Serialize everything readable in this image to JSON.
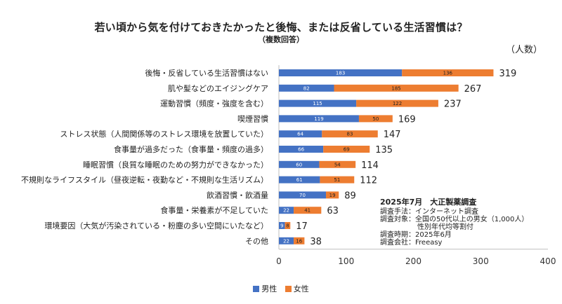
{
  "chart_data": {
    "type": "bar",
    "orientation": "horizontal",
    "stacked": true,
    "title": "若い頃から気を付けておきたかったと後悔、または反省している生活習慣は？",
    "subtitle": "（複数回答）",
    "unit_label": "（人数）",
    "categories": [
      "後悔・反省している生活習慣はない",
      "肌や髪などのエイジングケア",
      "運動習慣（頻度・強度を含む）",
      "喫煙習慣",
      "ストレス状態（人間関係等のストレス環境を放置していた）",
      "食事量が過多だった（食事量・頻度の過多）",
      "睡眠習慣（良質な睡眠のための努力ができなかった）",
      "不規則なライフスタイル（昼夜逆転・夜勤など・不規則な生活リズム）",
      "飲酒習慣・飲酒量",
      "食事量・栄養素が不足していた",
      "環境要因（大気が汚染されている・粉塵の多い空間にいたなど）",
      "その他"
    ],
    "series": [
      {
        "name": "男性",
        "color": "#4472C4",
        "values": [
          183,
          82,
          115,
          119,
          64,
          66,
          60,
          61,
          70,
          22,
          9,
          22
        ]
      },
      {
        "name": "女性",
        "color": "#ED7D31",
        "values": [
          136,
          185,
          122,
          50,
          83,
          69,
          54,
          51,
          19,
          41,
          8,
          16
        ]
      }
    ],
    "totals": [
      319,
      267,
      237,
      169,
      147,
      135,
      114,
      112,
      89,
      63,
      17,
      38
    ],
    "x_ticks": [
      0,
      100,
      200,
      300,
      400
    ],
    "xlim": [
      0,
      400
    ],
    "grid": false,
    "legend_position": "bottom"
  },
  "note": {
    "heading": "2025年7月　大正製薬調査",
    "lines": [
      {
        "label": "調査手法：",
        "value": "インターネット調査"
      },
      {
        "label": "調査対象：",
        "value": "全国の50代以上の男女（1,000人）"
      },
      {
        "label": "",
        "value": "性別年代均等割付"
      },
      {
        "label": "調査時期：",
        "value": "2025年6月"
      },
      {
        "label": "調査会社：",
        "value": "Freeasy"
      }
    ]
  }
}
